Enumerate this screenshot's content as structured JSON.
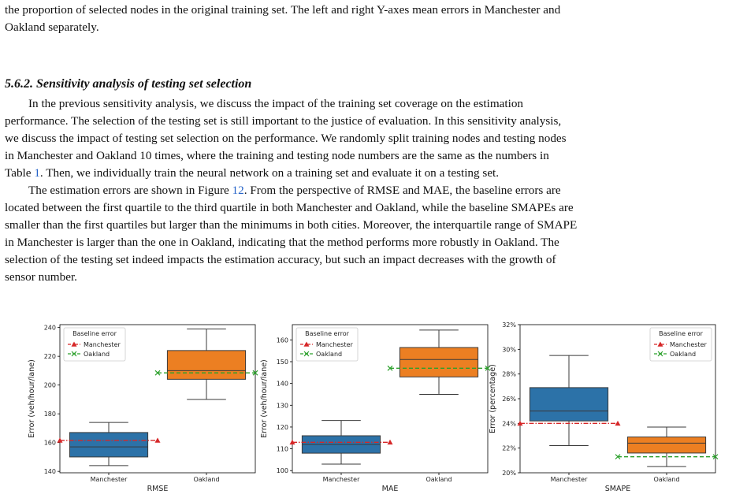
{
  "caption_tail": [
    "the proportion of selected nodes in the original training set. The left and right Y-axes mean errors in Manchester and",
    "Oakland separately."
  ],
  "section": {
    "heading": "5.6.2.  Sensitivity analysis of testing set selection",
    "para1": [
      "In the previous sensitivity analysis, we discuss the impact of the training set coverage on the estimation",
      "performance. The selection of the testing set is still important to the justice of evaluation. In this sensitivity analysis,",
      "we discuss the impact of testing set selection on the performance. We randomly split training nodes and testing nodes",
      "in Manchester and Oakland 10 times, where the training and testing node numbers are the same as the numbers in"
    ],
    "para1_last_a": "Table ",
    "para1_last_ref": "1",
    "para1_last_b": ". Then, we individually train the neural network on a training set and evaluate it on a testing set.",
    "para2_first_a": "The estimation errors are shown in Figure ",
    "para2_first_ref": "12",
    "para2_first_b": ". From the perspective of RMSE and MAE, the baseline errors are",
    "para2": [
      "located between the first quartile to the third quartile in both Manchester and Oakland, while the baseline SMAPEs are",
      "smaller than the first quartiles but larger than the minimums in both cities. Moreover, the interquartile range of SMAPE",
      "in Manchester is larger than the one in Oakland, indicating that the method performs more robustly in Oakland. The",
      "selection of the testing set indeed impacts the estimation accuracy, but such an impact decreases with the growth of",
      "sensor number."
    ]
  },
  "colors": {
    "manchester_box": "#2c72a8",
    "oakland_box": "#ec7f22",
    "manchester_base": "#d62728",
    "oakland_base": "#2ca02c",
    "link": "#2563c8"
  },
  "chart_data": [
    {
      "type": "box",
      "xlabel": "RMSE",
      "ylabel": "Error (veh/hour/lane)",
      "ylim": [
        139,
        242
      ],
      "yticks": [
        140,
        160,
        180,
        200,
        220,
        240
      ],
      "ytick_labels": [
        "140",
        "160",
        "180",
        "200",
        "220",
        "240"
      ],
      "categories": [
        "Manchester",
        "Oakland"
      ],
      "boxes": [
        {
          "name": "Manchester",
          "min": 144,
          "q1": 150,
          "median": 157,
          "q3": 167,
          "max": 174
        },
        {
          "name": "Oakland",
          "min": 190,
          "q1": 204,
          "median": 210,
          "q3": 224,
          "max": 239
        }
      ],
      "baseline": {
        "Manchester": 161.5,
        "Oakland": 208.5
      },
      "legend": {
        "title": "Baseline error",
        "items": [
          "Manchester",
          "Oakland"
        ],
        "position": "top-left"
      }
    },
    {
      "type": "box",
      "xlabel": "MAE",
      "ylabel": "Error (veh/hour/lane)",
      "ylim": [
        99,
        167
      ],
      "yticks": [
        100,
        110,
        120,
        130,
        140,
        150,
        160
      ],
      "ytick_labels": [
        "100",
        "110",
        "120",
        "130",
        "140",
        "150",
        "160"
      ],
      "categories": [
        "Manchester",
        "Oakland"
      ],
      "boxes": [
        {
          "name": "Manchester",
          "min": 103,
          "q1": 108,
          "median": 112,
          "q3": 116,
          "max": 123
        },
        {
          "name": "Oakland",
          "min": 135,
          "q1": 143,
          "median": 151,
          "q3": 156.5,
          "max": 164.5
        }
      ],
      "baseline": {
        "Manchester": 113,
        "Oakland": 147
      },
      "legend": {
        "title": "Baseline error",
        "items": [
          "Manchester",
          "Oakland"
        ],
        "position": "top-left"
      }
    },
    {
      "type": "box",
      "xlabel": "SMAPE",
      "ylabel": "Error (percentage)",
      "ylim": [
        20,
        32
      ],
      "yticks": [
        20,
        22,
        24,
        26,
        28,
        30,
        32
      ],
      "ytick_labels": [
        "20%",
        "22%",
        "24%",
        "26%",
        "28%",
        "30%",
        "32%"
      ],
      "categories": [
        "Manchester",
        "Oakland"
      ],
      "boxes": [
        {
          "name": "Manchester",
          "min": 22.2,
          "q1": 24.2,
          "median": 25,
          "q3": 26.9,
          "max": 29.5
        },
        {
          "name": "Oakland",
          "min": 20.5,
          "q1": 21.6,
          "median": 22.4,
          "q3": 22.9,
          "max": 23.7
        }
      ],
      "baseline": {
        "Manchester": 24,
        "Oakland": 21.3
      },
      "legend": {
        "title": "Baseline error",
        "items": [
          "Manchester",
          "Oakland"
        ],
        "position": "top-right"
      }
    }
  ]
}
